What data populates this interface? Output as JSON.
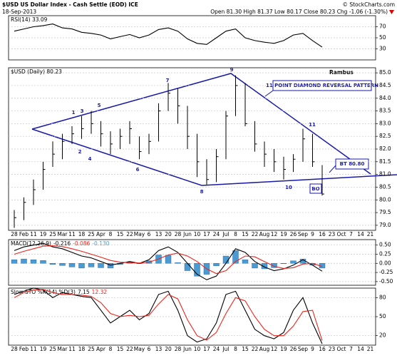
{
  "header": {
    "title": "$USD US Dollar Index - Cash Settle (EOD) ICE",
    "date": "18-Sep-2013",
    "copyright": "© StockCharts.com",
    "quote": "Open 81.30  High 81.37  Low 80.17  Close 80.23  Chg -1.06 (-1.30%)"
  },
  "chart_data": [
    {
      "type": "line",
      "title": "RSI(14) 33.09",
      "ylim": [
        10,
        90
      ],
      "yticks": [
        70,
        50,
        30
      ],
      "grid": true,
      "series": [
        {
          "name": "RSI(14)",
          "color": "#000000",
          "values": [
            62,
            66,
            70,
            72,
            75,
            68,
            66,
            60,
            58,
            55,
            48,
            52,
            56,
            50,
            55,
            65,
            68,
            62,
            48,
            40,
            38,
            50,
            62,
            66,
            50,
            45,
            42,
            40,
            45,
            55,
            58,
            45,
            33.09,
            null,
            null,
            null,
            null,
            null
          ]
        }
      ]
    },
    {
      "type": "ohlc",
      "title": "$USD (Daily) 80.23",
      "color": "#000000",
      "categories": [
        "28",
        "Feb",
        "11",
        "19",
        "25",
        "Mar",
        "11",
        "18",
        "25",
        "Apr",
        "8",
        "15",
        "22",
        "May",
        "6",
        "13",
        "20",
        "28",
        "Jun",
        "10",
        "17",
        "24",
        "Jul",
        "8",
        "15",
        "22",
        "Aug",
        "12",
        "19",
        "26",
        "Sep",
        "9",
        "16",
        "23",
        "Oct",
        "7",
        "14",
        "21"
      ],
      "high": [
        79.6,
        80.1,
        80.8,
        81.5,
        82.3,
        82.6,
        82.9,
        83.3,
        83.5,
        83.1,
        82.7,
        82.8,
        83.1,
        82.5,
        82.6,
        83.8,
        84.6,
        84.4,
        83.7,
        82.6,
        81.6,
        82.0,
        83.5,
        84.9,
        84.6,
        83.1,
        82.3,
        82.0,
        81.7,
        81.8,
        82.8,
        82.6,
        81.37,
        null,
        null,
        null,
        null,
        null
      ],
      "low": [
        78.9,
        79.2,
        79.8,
        80.4,
        81.3,
        81.6,
        82.2,
        82.4,
        82.6,
        82.1,
        81.8,
        82.0,
        82.2,
        81.6,
        81.8,
        82.3,
        83.5,
        83.0,
        82.0,
        80.9,
        80.6,
        80.7,
        81.6,
        83.3,
        82.9,
        81.9,
        81.3,
        81.1,
        80.8,
        81.1,
        81.5,
        81.3,
        80.17,
        null,
        null,
        null,
        null,
        null
      ],
      "close": [
        79.3,
        79.9,
        80.4,
        81.2,
        81.8,
        82.3,
        82.6,
        82.8,
        83.0,
        82.6,
        82.2,
        82.5,
        82.8,
        81.9,
        82.3,
        83.5,
        84.2,
        83.7,
        82.5,
        81.5,
        80.8,
        81.7,
        83.3,
        84.5,
        83.0,
        82.2,
        81.8,
        81.5,
        81.2,
        81.6,
        82.4,
        81.5,
        80.23,
        null,
        null,
        null,
        null,
        null
      ],
      "ylim": [
        78.8,
        85.2
      ],
      "yticks": [
        {
          "value": 85,
          "label": "85.0"
        },
        84.5,
        {
          "value": 84,
          "label": "84.0"
        },
        83.5,
        {
          "value": 83,
          "label": "83.0"
        },
        82.5,
        {
          "value": 82,
          "label": "82.0"
        },
        81.5,
        {
          "value": 81,
          "label": "81.0"
        },
        80.5,
        {
          "value": 80,
          "label": "80.0"
        },
        79.5,
        {
          "value": 79,
          "label": "79.0"
        }
      ],
      "grid": true,
      "wave_labels": [
        "1",
        "2",
        "3",
        "4",
        "5",
        "6",
        "7",
        "8",
        "9",
        "10",
        "11"
      ],
      "note": "Rambus",
      "pattern_label": "11 POINT DIAMOND   REVERSAL PATTERN",
      "bt_label": "BT 80.80",
      "bo_label": "BO"
    },
    {
      "type": "macd",
      "title": "MACD(12,26,9)",
      "ylim": [
        -0.6,
        0.65
      ],
      "yticks": [
        {
          "value": 0.5,
          "label": "0.50"
        },
        0.25,
        {
          "value": 0,
          "label": "0.00"
        },
        -0.25,
        {
          "value": -0.5,
          "label": "-0.50"
        }
      ],
      "grid": true,
      "series": [
        {
          "name": "MACD",
          "label": "-0.216",
          "color": "#000000",
          "kind": "line",
          "values": [
            0.35,
            0.45,
            0.5,
            0.55,
            0.45,
            0.4,
            0.3,
            0.2,
            0.15,
            0.05,
            -0.05,
            0.0,
            0.05,
            0.0,
            0.1,
            0.35,
            0.45,
            0.3,
            0.0,
            -0.3,
            -0.45,
            -0.35,
            0.0,
            0.4,
            0.3,
            0.05,
            -0.1,
            -0.2,
            -0.15,
            -0.05,
            0.1,
            -0.05,
            -0.216,
            null,
            null,
            null,
            null,
            null
          ]
        },
        {
          "name": "Signal",
          "label": "-0.086",
          "color": "#e8261e",
          "kind": "line",
          "values": [
            0.25,
            0.33,
            0.4,
            0.47,
            0.48,
            0.46,
            0.4,
            0.33,
            0.25,
            0.17,
            0.08,
            0.03,
            0.02,
            0.01,
            0.03,
            0.12,
            0.23,
            0.28,
            0.2,
            0.05,
            -0.15,
            -0.28,
            -0.2,
            0.05,
            0.2,
            0.18,
            0.05,
            -0.08,
            -0.14,
            -0.12,
            -0.02,
            0.0,
            -0.086,
            null,
            null,
            null,
            null,
            null
          ]
        },
        {
          "name": "Histogram",
          "label": "-0.130",
          "color": "#4a9ad4",
          "kind": "bar",
          "values": [
            0.1,
            0.12,
            0.1,
            0.08,
            -0.03,
            -0.06,
            -0.1,
            -0.13,
            -0.1,
            -0.12,
            -0.13,
            -0.03,
            0.03,
            -0.01,
            0.07,
            0.23,
            0.22,
            0.02,
            -0.2,
            -0.35,
            -0.3,
            -0.07,
            0.2,
            0.35,
            0.1,
            -0.13,
            -0.15,
            -0.12,
            -0.01,
            0.07,
            0.12,
            -0.05,
            -0.13,
            null,
            null,
            null,
            null,
            null
          ]
        }
      ]
    },
    {
      "type": "line",
      "title": "Slow STO %K(14) %D(3)",
      "ylim": [
        5,
        95
      ],
      "yticks": [
        80,
        50,
        20
      ],
      "grid": true,
      "categories": [
        "28",
        "Feb",
        "11",
        "19",
        "25",
        "Mar",
        "11",
        "18",
        "25",
        "Apr",
        "8",
        "15",
        "22",
        "May",
        "6",
        "13",
        "20",
        "28",
        "Jun",
        "10",
        "17",
        "24",
        "Jul",
        "8",
        "15",
        "22",
        "Aug",
        "12",
        "19",
        "26",
        "Sep",
        "9",
        "16",
        "23",
        "Oct",
        "7",
        "14",
        "21"
      ],
      "series": [
        {
          "name": "%K",
          "label": "7.15",
          "color": "#000000",
          "values": [
            85,
            90,
            95,
            92,
            80,
            88,
            85,
            82,
            80,
            60,
            40,
            50,
            60,
            45,
            55,
            85,
            90,
            60,
            20,
            10,
            15,
            40,
            85,
            90,
            60,
            30,
            20,
            15,
            25,
            60,
            80,
            40,
            7.15,
            null,
            null,
            null,
            null,
            null
          ]
        },
        {
          "name": "%D",
          "label": "12.32",
          "color": "#e8261e",
          "values": [
            80,
            88,
            92,
            93,
            88,
            85,
            85,
            84,
            82,
            72,
            55,
            50,
            52,
            50,
            52,
            70,
            85,
            78,
            45,
            20,
            13,
            25,
            55,
            80,
            75,
            50,
            30,
            20,
            20,
            35,
            58,
            60,
            12.32,
            null,
            null,
            null,
            null,
            null
          ]
        }
      ]
    }
  ]
}
